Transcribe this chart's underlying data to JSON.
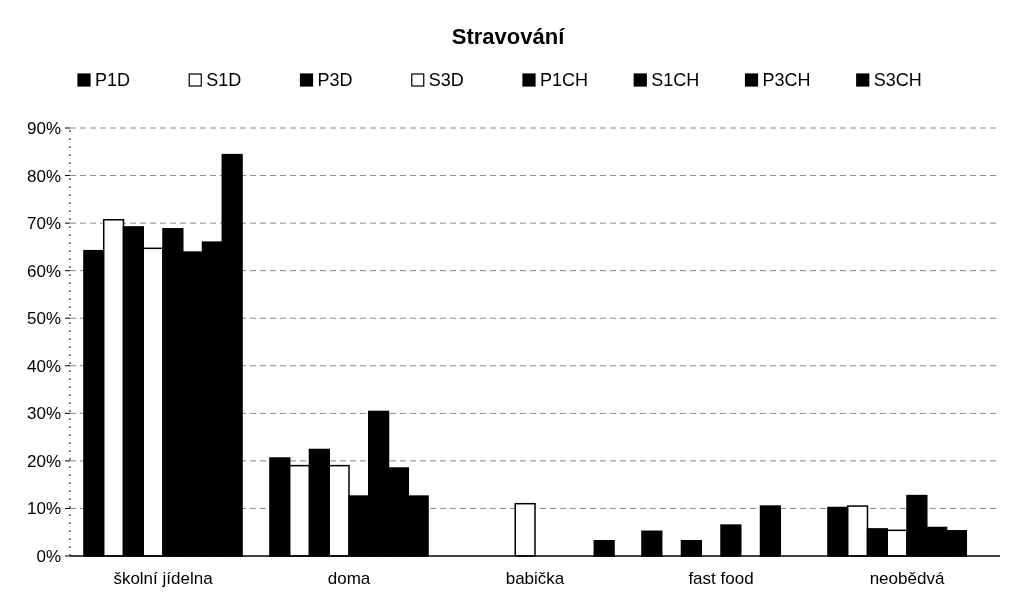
{
  "chart_data": {
    "type": "bar",
    "title": "Stravování",
    "categories": [
      "školní jídelna",
      "doma",
      "babička",
      "fast food",
      "neobědvá"
    ],
    "series": [
      {
        "name": "P1D",
        "color": "#000000",
        "values": [
          64.2,
          20.6,
          0,
          5.2,
          10.2
        ]
      },
      {
        "name": "S1D",
        "color": "#ffffff",
        "values": [
          70.7,
          19,
          0,
          0,
          10.5
        ]
      },
      {
        "name": "P3D",
        "color": "#000000",
        "values": [
          69.2,
          22.4,
          0,
          3.2,
          5.7
        ]
      },
      {
        "name": "S3D",
        "color": "#ffffff",
        "values": [
          64.7,
          19,
          11,
          0,
          5.4
        ]
      },
      {
        "name": "P1CH",
        "color": "#000000",
        "values": [
          68.8,
          12.6,
          0,
          6.5,
          12.7
        ]
      },
      {
        "name": "S1CH",
        "color": "#000000",
        "values": [
          63.9,
          30.4,
          0,
          0,
          6
        ]
      },
      {
        "name": "P3CH",
        "color": "#000000",
        "values": [
          66,
          18.5,
          0,
          10.5,
          5.3
        ]
      },
      {
        "name": "S3CH",
        "color": "#000000",
        "values": [
          84.4,
          12.6,
          3.2,
          0,
          0
        ]
      }
    ],
    "ylim": [
      0,
      90
    ],
    "yticks": [
      {
        "value": 0,
        "label": "0%"
      },
      {
        "value": 10,
        "label": "10%"
      },
      {
        "value": 20,
        "label": "20%"
      },
      {
        "value": 30,
        "label": "30%"
      },
      {
        "value": 40,
        "label": "40%"
      },
      {
        "value": 50,
        "label": "50%"
      },
      {
        "value": 60,
        "label": "60%"
      },
      {
        "value": 70,
        "label": "70%"
      },
      {
        "value": 80,
        "label": "80%"
      },
      {
        "value": 90,
        "label": "90%"
      }
    ],
    "grid": "y",
    "legend": "top"
  }
}
